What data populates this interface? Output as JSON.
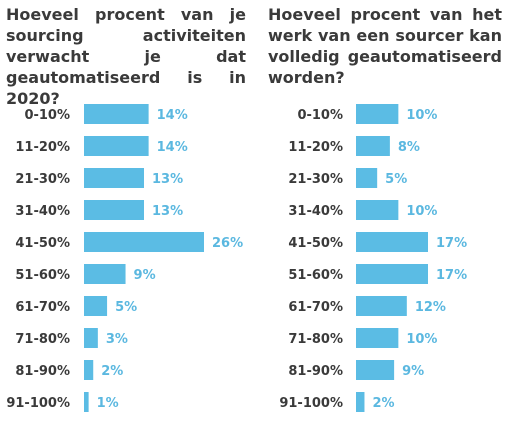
{
  "colors": {
    "bar": "#5bbce4",
    "value_text": "#5bb8e0",
    "text": "#3a3a3a"
  },
  "chart_data": [
    {
      "type": "bar",
      "orientation": "horizontal",
      "title": "Hoeveel procent van je sourcing activiteiten verwacht je dat geautomatiseerd is in 2020?",
      "categories": [
        "0-10%",
        "11-20%",
        "21-30%",
        "31-40%",
        "41-50%",
        "51-60%",
        "61-70%",
        "71-80%",
        "81-90%",
        "91-100%"
      ],
      "values": [
        14,
        14,
        13,
        13,
        26,
        9,
        5,
        3,
        2,
        1
      ],
      "value_labels": [
        "14%",
        "14%",
        "13%",
        "13%",
        "26%",
        "9%",
        "5%",
        "3%",
        "2%",
        "1%"
      ],
      "xlim": [
        0,
        26
      ],
      "grid": false,
      "legend": "none"
    },
    {
      "type": "bar",
      "orientation": "horizontal",
      "title": "Hoeveel procent van het werk van een sourcer kan volledig geautomatiseerd worden?",
      "categories": [
        "0-10%",
        "11-20%",
        "21-30%",
        "31-40%",
        "41-50%",
        "51-60%",
        "61-70%",
        "71-80%",
        "81-90%",
        "91-100%"
      ],
      "values": [
        10,
        8,
        5,
        10,
        17,
        17,
        12,
        10,
        9,
        2
      ],
      "value_labels": [
        "10%",
        "8%",
        "5%",
        "10%",
        "17%",
        "17%",
        "12%",
        "10%",
        "9%",
        "2%"
      ],
      "xlim": [
        0,
        17
      ],
      "grid": false,
      "legend": "none"
    }
  ]
}
